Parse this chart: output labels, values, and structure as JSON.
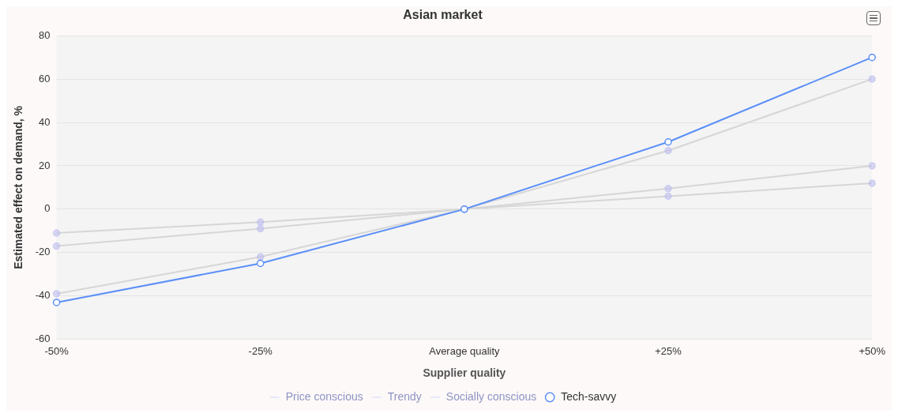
{
  "chart_data": {
    "type": "line",
    "title": "Asian market",
    "xlabel": "Supplier quality",
    "ylabel": "Estimated effect on demand, %",
    "categories": [
      "-50%",
      "-25%",
      "Average quality",
      "+25%",
      "+50%"
    ],
    "series": [
      {
        "name": "Price conscious",
        "color": "#d6d6d6",
        "values": [
          -11,
          -6,
          0,
          6,
          12
        ]
      },
      {
        "name": "Trendy",
        "color": "#d6d6d6",
        "values": [
          -17,
          -9,
          0,
          9.5,
          20
        ]
      },
      {
        "name": "Socially conscious",
        "color": "#d6d6d6",
        "values": [
          -39,
          -22,
          0,
          27,
          60
        ]
      },
      {
        "name": "Tech-savvy",
        "color": "#5b8ff9",
        "values": [
          -43,
          -25,
          0,
          31,
          70
        ]
      }
    ],
    "ylim": [
      -60,
      80
    ],
    "yticks": [
      -60,
      -40,
      -20,
      0,
      20,
      40,
      60,
      80
    ],
    "grid": "y",
    "legend": "bottom",
    "marker": "circle",
    "line_style": "solid"
  }
}
